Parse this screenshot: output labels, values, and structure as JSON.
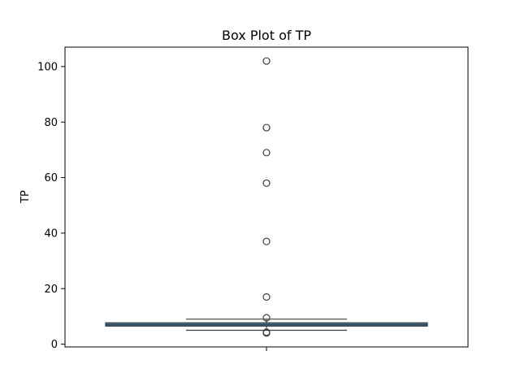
{
  "chart_data": {
    "type": "box",
    "title": "Box Plot of TP",
    "ylabel": "TP",
    "xlabel": "",
    "ylim": [
      -1,
      107
    ],
    "yticks": [
      0,
      20,
      40,
      60,
      80,
      100
    ],
    "yticks_labels": [
      "0",
      "20",
      "40",
      "60",
      "80",
      "100"
    ],
    "grid": false,
    "box": {
      "q1": 6.5,
      "median": 7.0,
      "q3": 7.7,
      "whisker_low": 5.0,
      "whisker_high": 9.0,
      "outliers": [
        4.0,
        4.3,
        9.5,
        17,
        37,
        58,
        69,
        78,
        102
      ]
    },
    "colors": {
      "box_fill": "#3a72a0",
      "box_edge": "#3d3d3d",
      "whisker": "#3d3d3d",
      "outlier_edge": "#3d3d3d"
    }
  }
}
